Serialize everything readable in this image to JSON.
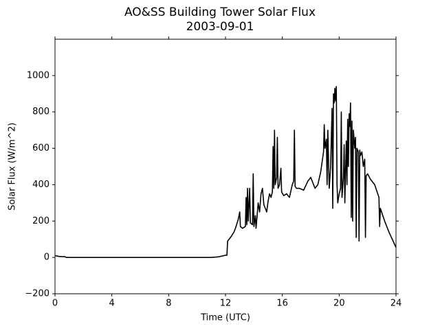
{
  "chart_data": {
    "type": "line",
    "title": "AO&SS Building Tower Solar Flux",
    "subtitle": "2003-09-01",
    "x_label": "Time (UTC)",
    "y_label": "Solar Flux (W/m^2)",
    "xlim": [
      0,
      24
    ],
    "xticks": [
      0,
      4,
      8,
      12,
      16,
      20,
      24
    ],
    "ylim": [
      -200,
      1200
    ],
    "yticks": [
      {
        "value": -200,
        "label": "−200"
      },
      0,
      200,
      400,
      600,
      800,
      1000
    ],
    "grid": false,
    "series": [
      {
        "color": "#000000",
        "x": [
          0,
          0.3,
          0.7,
          0.8,
          11,
          11.5,
          12,
          12.1,
          12.15,
          12.4,
          12.6,
          12.7,
          12.9,
          13.0,
          13.05,
          13.2,
          13.4,
          13.45,
          13.5,
          13.55,
          13.6,
          13.7,
          13.75,
          13.9,
          13.95,
          14.0,
          14.1,
          14.15,
          14.3,
          14.4,
          14.5,
          14.6,
          14.7,
          14.9,
          15.0,
          15.1,
          15.2,
          15.3,
          15.35,
          15.4,
          15.45,
          15.5,
          15.6,
          15.65,
          15.7,
          15.8,
          15.9,
          15.95,
          16.1,
          16.3,
          16.5,
          16.7,
          16.8,
          16.85,
          16.9,
          17.0,
          17.2,
          17.5,
          17.8,
          18.0,
          18.3,
          18.5,
          18.7,
          18.9,
          18.95,
          19.0,
          19.1,
          19.15,
          19.2,
          19.3,
          19.4,
          19.5,
          19.55,
          19.6,
          19.65,
          19.7,
          19.75,
          19.8,
          19.85,
          19.9,
          20.0,
          20.1,
          20.15,
          20.2,
          20.3,
          20.35,
          20.4,
          20.5,
          20.55,
          20.6,
          20.65,
          20.7,
          20.75,
          20.8,
          20.85,
          20.9,
          20.95,
          21.0,
          21.1,
          21.15,
          21.2,
          21.25,
          21.35,
          21.4,
          21.45,
          21.5,
          21.6,
          21.7,
          21.8,
          21.85,
          21.9,
          22.0,
          22.2,
          22.5,
          22.8,
          22.85,
          22.9,
          23.2,
          23.5,
          24.0
        ],
        "values": [
          10,
          5,
          4,
          0,
          0,
          3,
          12,
          12,
          90,
          115,
          140,
          160,
          210,
          250,
          170,
          160,
          170,
          330,
          180,
          380,
          200,
          380,
          190,
          180,
          460,
          170,
          230,
          160,
          300,
          250,
          350,
          380,
          290,
          250,
          310,
          350,
          330,
          360,
          610,
          380,
          700,
          400,
          440,
          660,
          380,
          400,
          490,
          360,
          340,
          350,
          330,
          400,
          420,
          700,
          390,
          380,
          380,
          370,
          420,
          440,
          380,
          400,
          470,
          580,
          730,
          600,
          650,
          400,
          700,
          380,
          500,
          820,
          270,
          900,
          850,
          930,
          860,
          940,
          400,
          300,
          350,
          380,
          800,
          330,
          440,
          620,
          300,
          640,
          400,
          760,
          500,
          790,
          720,
          850,
          220,
          750,
          200,
          700,
          600,
          660,
          110,
          600,
          580,
          90,
          590,
          560,
          580,
          500,
          540,
          110,
          450,
          460,
          430,
          400,
          330,
          170,
          270,
          200,
          140,
          55
        ]
      }
    ]
  }
}
